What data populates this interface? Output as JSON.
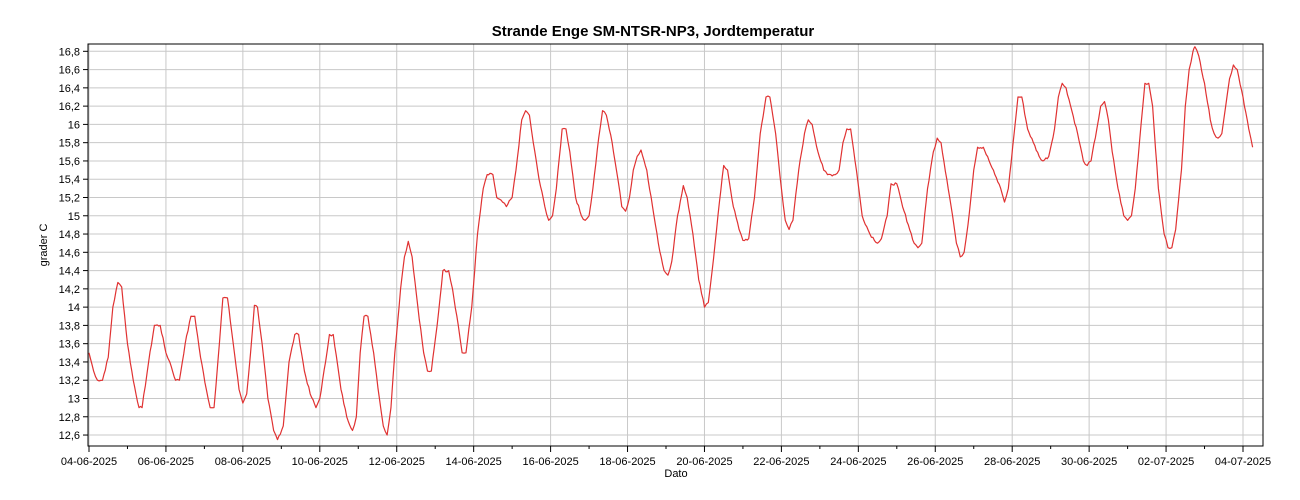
{
  "chart_data": {
    "type": "line",
    "title": "Strande Enge SM-NTSR-NP3, Jordtemperatur",
    "xlabel": "Dato",
    "ylabel": "grader C",
    "ylim": [
      12.48,
      16.88
    ],
    "grid": true,
    "colors": {
      "series": "#e03232",
      "grid": "#c8c8c8",
      "axis": "#000000"
    },
    "x_tick_labels": [
      "04-06-2025",
      "06-06-2025",
      "08-06-2025",
      "10-06-2025",
      "12-06-2025",
      "14-06-2025",
      "16-06-2025",
      "18-06-2025",
      "20-06-2025",
      "22-06-2025",
      "24-06-2025",
      "26-06-2025",
      "28-06-2025",
      "30-06-2025",
      "02-07-2025",
      "04-07-2025"
    ],
    "y_tick_labels": [
      "12,6",
      "12,8",
      "13",
      "13,2",
      "13,4",
      "13,6",
      "13,8",
      "14",
      "14,2",
      "14,4",
      "14,6",
      "14,8",
      "15",
      "15,2",
      "15,4",
      "15,6",
      "15,8",
      "16",
      "16,2",
      "16,4",
      "16,6",
      "16,8"
    ],
    "series": [
      {
        "x_unit": "days since 04-06-2025",
        "points": [
          [
            0.0,
            13.5
          ],
          [
            0.12,
            13.3
          ],
          [
            0.22,
            13.2
          ],
          [
            0.35,
            13.2
          ],
          [
            0.5,
            13.45
          ],
          [
            0.62,
            14.0
          ],
          [
            0.75,
            14.27
          ],
          [
            0.85,
            14.22
          ],
          [
            1.0,
            13.6
          ],
          [
            1.15,
            13.2
          ],
          [
            1.3,
            12.9
          ],
          [
            1.38,
            12.9
          ],
          [
            1.55,
            13.4
          ],
          [
            1.7,
            13.8
          ],
          [
            1.85,
            13.8
          ],
          [
            2.0,
            13.5
          ],
          [
            2.1,
            13.4
          ],
          [
            2.25,
            13.2
          ],
          [
            2.35,
            13.2
          ],
          [
            2.5,
            13.6
          ],
          [
            2.65,
            13.9
          ],
          [
            2.75,
            13.9
          ],
          [
            2.9,
            13.45
          ],
          [
            3.05,
            13.1
          ],
          [
            3.15,
            12.9
          ],
          [
            3.25,
            12.9
          ],
          [
            3.35,
            13.4
          ],
          [
            3.48,
            14.1
          ],
          [
            3.6,
            14.1
          ],
          [
            3.75,
            13.6
          ],
          [
            3.9,
            13.1
          ],
          [
            4.0,
            12.95
          ],
          [
            4.1,
            13.05
          ],
          [
            4.2,
            13.5
          ],
          [
            4.3,
            14.02
          ],
          [
            4.38,
            14.0
          ],
          [
            4.5,
            13.6
          ],
          [
            4.65,
            13.0
          ],
          [
            4.8,
            12.65
          ],
          [
            4.9,
            12.55
          ],
          [
            5.05,
            12.7
          ],
          [
            5.2,
            13.4
          ],
          [
            5.35,
            13.7
          ],
          [
            5.45,
            13.7
          ],
          [
            5.6,
            13.3
          ],
          [
            5.75,
            13.05
          ],
          [
            5.9,
            12.9
          ],
          [
            6.0,
            13.0
          ],
          [
            6.15,
            13.4
          ],
          [
            6.25,
            13.7
          ],
          [
            6.35,
            13.7
          ],
          [
            6.55,
            13.1
          ],
          [
            6.7,
            12.8
          ],
          [
            6.85,
            12.65
          ],
          [
            6.95,
            12.8
          ],
          [
            7.05,
            13.5
          ],
          [
            7.15,
            13.9
          ],
          [
            7.25,
            13.9
          ],
          [
            7.4,
            13.5
          ],
          [
            7.55,
            13.0
          ],
          [
            7.65,
            12.7
          ],
          [
            7.75,
            12.6
          ],
          [
            7.85,
            12.9
          ],
          [
            7.95,
            13.5
          ],
          [
            8.1,
            14.2
          ],
          [
            8.2,
            14.55
          ],
          [
            8.3,
            14.72
          ],
          [
            8.4,
            14.55
          ],
          [
            8.55,
            14.0
          ],
          [
            8.7,
            13.5
          ],
          [
            8.8,
            13.3
          ],
          [
            8.9,
            13.3
          ],
          [
            9.05,
            13.8
          ],
          [
            9.2,
            14.4
          ],
          [
            9.35,
            14.4
          ],
          [
            9.45,
            14.2
          ],
          [
            9.6,
            13.8
          ],
          [
            9.7,
            13.5
          ],
          [
            9.8,
            13.5
          ],
          [
            9.95,
            14.0
          ],
          [
            10.1,
            14.8
          ],
          [
            10.25,
            15.3
          ],
          [
            10.35,
            15.45
          ],
          [
            10.5,
            15.45
          ],
          [
            10.6,
            15.2
          ],
          [
            10.75,
            15.15
          ],
          [
            10.85,
            15.1
          ],
          [
            11.0,
            15.2
          ],
          [
            11.1,
            15.5
          ],
          [
            11.25,
            16.05
          ],
          [
            11.35,
            16.15
          ],
          [
            11.45,
            16.1
          ],
          [
            11.55,
            15.8
          ],
          [
            11.7,
            15.4
          ],
          [
            11.85,
            15.1
          ],
          [
            11.95,
            14.95
          ],
          [
            12.05,
            15.0
          ],
          [
            12.15,
            15.3
          ],
          [
            12.3,
            15.95
          ],
          [
            12.4,
            15.95
          ],
          [
            12.5,
            15.7
          ],
          [
            12.65,
            15.2
          ],
          [
            12.8,
            15.0
          ],
          [
            12.9,
            14.95
          ],
          [
            13.0,
            15.0
          ],
          [
            13.1,
            15.3
          ],
          [
            13.25,
            15.85
          ],
          [
            13.35,
            16.15
          ],
          [
            13.45,
            16.1
          ],
          [
            13.6,
            15.8
          ],
          [
            13.75,
            15.4
          ],
          [
            13.85,
            15.1
          ],
          [
            13.95,
            15.05
          ],
          [
            14.05,
            15.2
          ],
          [
            14.15,
            15.5
          ],
          [
            14.25,
            15.65
          ],
          [
            14.35,
            15.72
          ],
          [
            14.5,
            15.5
          ],
          [
            14.65,
            15.1
          ],
          [
            14.8,
            14.7
          ],
          [
            14.95,
            14.4
          ],
          [
            15.05,
            14.35
          ],
          [
            15.15,
            14.5
          ],
          [
            15.3,
            15.0
          ],
          [
            15.45,
            15.33
          ],
          [
            15.55,
            15.2
          ],
          [
            15.7,
            14.8
          ],
          [
            15.85,
            14.3
          ],
          [
            16.0,
            14.0
          ],
          [
            16.1,
            14.05
          ],
          [
            16.2,
            14.4
          ],
          [
            16.35,
            15.0
          ],
          [
            16.5,
            15.55
          ],
          [
            16.6,
            15.5
          ],
          [
            16.75,
            15.1
          ],
          [
            16.9,
            14.85
          ],
          [
            17.0,
            14.73
          ],
          [
            17.15,
            14.75
          ],
          [
            17.3,
            15.2
          ],
          [
            17.45,
            15.9
          ],
          [
            17.6,
            16.3
          ],
          [
            17.7,
            16.3
          ],
          [
            17.85,
            15.9
          ],
          [
            18.0,
            15.3
          ],
          [
            18.1,
            14.95
          ],
          [
            18.2,
            14.85
          ],
          [
            18.3,
            14.95
          ],
          [
            18.45,
            15.5
          ],
          [
            18.6,
            15.9
          ],
          [
            18.7,
            16.05
          ],
          [
            18.8,
            16.0
          ],
          [
            18.95,
            15.7
          ],
          [
            19.1,
            15.5
          ],
          [
            19.2,
            15.45
          ],
          [
            19.4,
            15.45
          ],
          [
            19.5,
            15.5
          ],
          [
            19.6,
            15.8
          ],
          [
            19.7,
            15.95
          ],
          [
            19.8,
            15.95
          ],
          [
            19.95,
            15.5
          ],
          [
            20.1,
            15.0
          ],
          [
            20.3,
            14.8
          ],
          [
            20.5,
            14.7
          ],
          [
            20.6,
            14.75
          ],
          [
            20.75,
            15.0
          ],
          [
            20.85,
            15.35
          ],
          [
            21.0,
            15.35
          ],
          [
            21.15,
            15.1
          ],
          [
            21.3,
            14.9
          ],
          [
            21.45,
            14.7
          ],
          [
            21.55,
            14.65
          ],
          [
            21.65,
            14.7
          ],
          [
            21.8,
            15.3
          ],
          [
            21.95,
            15.7
          ],
          [
            22.05,
            15.85
          ],
          [
            22.15,
            15.8
          ],
          [
            22.3,
            15.4
          ],
          [
            22.45,
            15.0
          ],
          [
            22.55,
            14.7
          ],
          [
            22.65,
            14.55
          ],
          [
            22.75,
            14.6
          ],
          [
            22.85,
            14.9
          ],
          [
            23.0,
            15.5
          ],
          [
            23.1,
            15.75
          ],
          [
            23.25,
            15.75
          ],
          [
            23.4,
            15.6
          ],
          [
            23.55,
            15.45
          ],
          [
            23.7,
            15.3
          ],
          [
            23.8,
            15.15
          ],
          [
            23.9,
            15.3
          ],
          [
            24.05,
            15.9
          ],
          [
            24.15,
            16.3
          ],
          [
            24.25,
            16.3
          ],
          [
            24.4,
            15.95
          ],
          [
            24.55,
            15.8
          ],
          [
            24.7,
            15.65
          ],
          [
            24.8,
            15.6
          ],
          [
            24.95,
            15.65
          ],
          [
            25.1,
            15.95
          ],
          [
            25.2,
            16.3
          ],
          [
            25.3,
            16.45
          ],
          [
            25.4,
            16.4
          ],
          [
            25.55,
            16.15
          ],
          [
            25.7,
            15.9
          ],
          [
            25.85,
            15.6
          ],
          [
            25.95,
            15.55
          ],
          [
            26.05,
            15.6
          ],
          [
            26.2,
            15.95
          ],
          [
            26.3,
            16.2
          ],
          [
            26.4,
            16.25
          ],
          [
            26.5,
            16.05
          ],
          [
            26.6,
            15.7
          ],
          [
            26.75,
            15.3
          ],
          [
            26.9,
            15.0
          ],
          [
            27.0,
            14.95
          ],
          [
            27.1,
            15.0
          ],
          [
            27.2,
            15.3
          ],
          [
            27.35,
            16.0
          ],
          [
            27.45,
            16.45
          ],
          [
            27.55,
            16.45
          ],
          [
            27.65,
            16.2
          ],
          [
            27.8,
            15.3
          ],
          [
            27.95,
            14.8
          ],
          [
            28.05,
            14.65
          ],
          [
            28.15,
            14.65
          ],
          [
            28.25,
            14.85
          ],
          [
            28.4,
            15.5
          ],
          [
            28.5,
            16.2
          ],
          [
            28.6,
            16.6
          ],
          [
            28.7,
            16.8
          ],
          [
            28.75,
            16.85
          ],
          [
            28.85,
            16.75
          ],
          [
            29.0,
            16.45
          ],
          [
            29.15,
            16.05
          ],
          [
            29.25,
            15.9
          ],
          [
            29.35,
            15.85
          ],
          [
            29.45,
            15.9
          ],
          [
            29.55,
            16.2
          ],
          [
            29.65,
            16.5
          ],
          [
            29.75,
            16.65
          ],
          [
            29.85,
            16.6
          ],
          [
            30.0,
            16.3
          ],
          [
            30.15,
            15.95
          ],
          [
            30.25,
            15.75
          ]
        ]
      }
    ]
  }
}
